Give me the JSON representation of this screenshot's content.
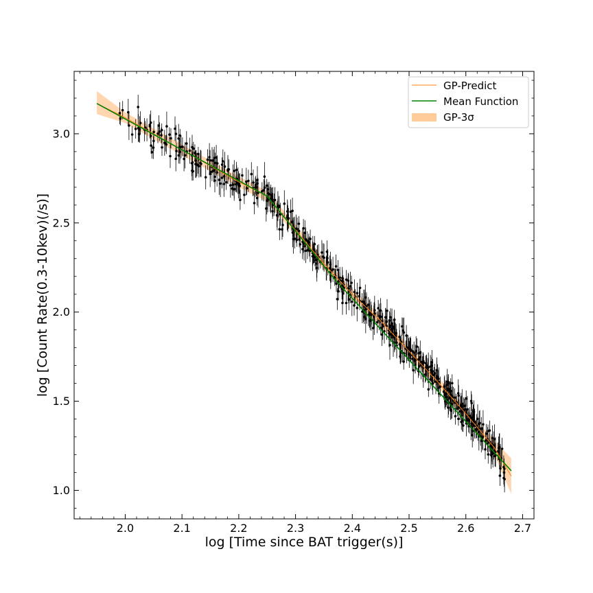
{
  "chart_data": {
    "type": "scatter",
    "title": "",
    "xlabel": "log [Time since BAT trigger(s)]",
    "ylabel": "log [Count Rate(0.3-10kev)(/s)]",
    "xlim": [
      1.91,
      2.72
    ],
    "ylim": [
      0.84,
      3.35
    ],
    "xticks": [
      2.0,
      2.1,
      2.2,
      2.3,
      2.4,
      2.5,
      2.6,
      2.7
    ],
    "xtick_labels": [
      "2.0",
      "2.1",
      "2.2",
      "2.3",
      "2.4",
      "2.5",
      "2.6",
      "2.7"
    ],
    "yticks": [
      1.0,
      1.5,
      2.0,
      2.5,
      3.0
    ],
    "ytick_labels": [
      "1.0",
      "1.5",
      "2.0",
      "2.5",
      "3.0"
    ],
    "grid": false,
    "legend_position": "top-right",
    "legend": [
      {
        "label": "GP-Predict",
        "kind": "line",
        "color": "#ff7f0e"
      },
      {
        "label": "Mean Function",
        "kind": "line",
        "color": "#008000"
      },
      {
        "label": "GP-3σ",
        "kind": "band",
        "color": "#ffcc99"
      }
    ],
    "colors": {
      "gp_predict": "#ff7f0e",
      "mean_function": "#008000",
      "band": "#ffc896",
      "points": "#000000"
    },
    "mean_function": {
      "x": [
        1.95,
        2.25,
        2.37,
        2.68
      ],
      "y": [
        3.17,
        2.65,
        2.18,
        1.11
      ]
    },
    "gp_predict": {
      "x": [
        1.95,
        2.0,
        2.05,
        2.1,
        2.15,
        2.2,
        2.25,
        2.3,
        2.35,
        2.4,
        2.45,
        2.5,
        2.55,
        2.6,
        2.65,
        2.68
      ],
      "y": [
        3.17,
        3.09,
        3.0,
        2.91,
        2.82,
        2.73,
        2.65,
        2.46,
        2.27,
        2.1,
        1.95,
        1.78,
        1.61,
        1.43,
        1.24,
        1.08
      ]
    },
    "gp_band": {
      "x": [
        1.95,
        2.0,
        2.05,
        2.1,
        2.15,
        2.2,
        2.25,
        2.3,
        2.35,
        2.4,
        2.45,
        2.5,
        2.55,
        2.6,
        2.65,
        2.68
      ],
      "lower": [
        3.11,
        3.06,
        2.97,
        2.88,
        2.79,
        2.7,
        2.62,
        2.43,
        2.24,
        2.07,
        1.92,
        1.75,
        1.58,
        1.4,
        1.2,
        0.98
      ],
      "upper": [
        3.24,
        3.12,
        3.03,
        2.94,
        2.85,
        2.76,
        2.68,
        2.49,
        2.3,
        2.13,
        1.98,
        1.81,
        1.64,
        1.46,
        1.28,
        1.18
      ]
    },
    "data_points": {
      "n": 560,
      "x_range": [
        1.99,
        2.67
      ],
      "y_error_typical": 0.06,
      "description_only": false
    }
  }
}
